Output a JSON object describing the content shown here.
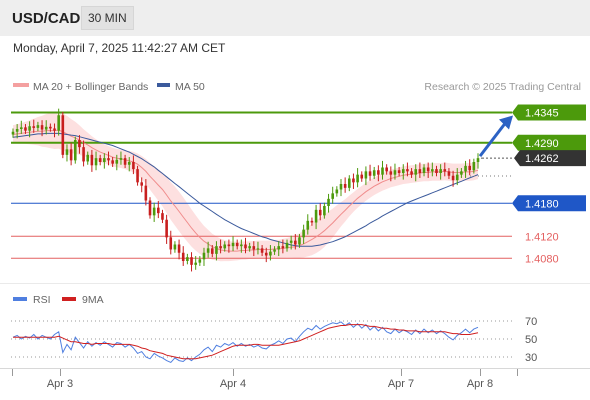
{
  "header": {
    "symbol": "USD/CAD",
    "interval": "30 MIN"
  },
  "datetime": "Monday, April 7, 2025 11:42:27 AM CET",
  "colors": {
    "resistance": "#4c9a0c",
    "current": "#333333",
    "pivot": "#1f57c7",
    "support": "#e46060",
    "bollinger_fill": "#fde0e0",
    "ma20": "#f08c8c",
    "ma50": "#3b5a9c",
    "rsi": "#4f7fe0",
    "rsi_ma": "#d02020",
    "bull_candle": "#4c9a0c",
    "bear_candle": "#c81e1e",
    "arrow": "#2c62c4"
  },
  "chart_data": [
    {
      "type": "candlestick",
      "legend": [
        {
          "label": "MA 20 + Bollinger Bands",
          "color": "#f4a0a0"
        },
        {
          "label": "MA 50",
          "color": "#3b5a9c"
        }
      ],
      "watermark": "Research © 2025 Trading Central",
      "x_ticks": [
        "Apr 3",
        "Apr 4",
        "Apr 7",
        "Apr 8"
      ],
      "ylim": [
        1.4035,
        1.4375
      ],
      "levels": [
        {
          "value": 1.4345,
          "label": "1.4345",
          "kind": "resistance"
        },
        {
          "value": 1.429,
          "label": "1.4290",
          "kind": "resistance"
        },
        {
          "value": 1.4262,
          "label": "1.4262",
          "kind": "current"
        },
        {
          "value": 1.418,
          "label": "1.4180",
          "kind": "pivot"
        },
        {
          "value": 1.412,
          "label": "1.4120",
          "kind": "support"
        },
        {
          "value": 1.408,
          "label": "1.4080",
          "kind": "support"
        }
      ],
      "close": [
        1.431,
        1.4315,
        1.4318,
        1.4312,
        1.432,
        1.4317,
        1.4322,
        1.4314,
        1.4319,
        1.4316,
        1.4312,
        1.434,
        1.4268,
        1.4278,
        1.4258,
        1.4295,
        1.4282,
        1.4256,
        1.4268,
        1.4249,
        1.4262,
        1.4255,
        1.4262,
        1.4258,
        1.4252,
        1.4259,
        1.4262,
        1.425,
        1.4255,
        1.4242,
        1.4218,
        1.4212,
        1.4185,
        1.4158,
        1.4172,
        1.4162,
        1.415,
        1.4118,
        1.4096,
        1.4105,
        1.409,
        1.4075,
        1.4082,
        1.4068,
        1.4072,
        1.4078,
        1.409,
        1.4098,
        1.4088,
        1.4102,
        1.4098,
        1.4105,
        1.4102,
        1.4108,
        1.4102,
        1.4105,
        1.4098,
        1.4102,
        1.4096,
        1.4098,
        1.409,
        1.4085,
        1.4092,
        1.4096,
        1.4102,
        1.4098,
        1.4108,
        1.4112,
        1.4105,
        1.4118,
        1.4132,
        1.4148,
        1.4145,
        1.4168,
        1.4158,
        1.4175,
        1.4188,
        1.4198,
        1.4205,
        1.4215,
        1.4208,
        1.4225,
        1.4218,
        1.4232,
        1.4225,
        1.4238,
        1.423,
        1.424,
        1.4232,
        1.4245,
        1.4238,
        1.4232,
        1.424,
        1.4235,
        1.4242,
        1.4238,
        1.4232,
        1.4242,
        1.4235,
        1.4245,
        1.4238,
        1.4242,
        1.4235,
        1.4242,
        1.4238,
        1.423,
        1.4222,
        1.4232,
        1.4238,
        1.4248,
        1.424,
        1.4255,
        1.4262
      ],
      "ma20": [
        1.4305,
        1.4306,
        1.4307,
        1.4308,
        1.4309,
        1.431,
        1.4311,
        1.4311,
        1.4312,
        1.4312,
        1.4312,
        1.4313,
        1.431,
        1.4306,
        1.4302,
        1.4299,
        1.4295,
        1.429,
        1.4286,
        1.4281,
        1.4277,
        1.4273,
        1.427,
        1.4267,
        1.4264,
        1.4262,
        1.4261,
        1.4259,
        1.4257,
        1.4255,
        1.4251,
        1.4245,
        1.4238,
        1.4229,
        1.4221,
        1.4213,
        1.4205,
        1.4195,
        1.4184,
        1.4175,
        1.4165,
        1.4155,
        1.4145,
        1.4135,
        1.4126,
        1.4118,
        1.4111,
        1.4106,
        1.4101,
        1.4098,
        1.4095,
        1.4094,
        1.4093,
        1.4093,
        1.4093,
        1.4094,
        1.4094,
        1.4095,
        1.4095,
        1.4096,
        1.4096,
        1.4096,
        1.4096,
        1.4097,
        1.4097,
        1.4098,
        1.4099,
        1.41,
        1.4101,
        1.4103,
        1.4106,
        1.411,
        1.4114,
        1.4119,
        1.4124,
        1.413,
        1.4137,
        1.4144,
        1.4152,
        1.416,
        1.4167,
        1.4175,
        1.4182,
        1.4189,
        1.4195,
        1.4201,
        1.4206,
        1.4211,
        1.4215,
        1.4219,
        1.4222,
        1.4225,
        1.4227,
        1.4229,
        1.4231,
        1.4232,
        1.4233,
        1.4234,
        1.4235,
        1.4236,
        1.4236,
        1.4237,
        1.4237,
        1.4237,
        1.4238,
        1.4237,
        1.4236,
        1.4236,
        1.4236,
        1.4237,
        1.4237,
        1.4238,
        1.424
      ],
      "ma50": [
        1.43,
        1.4301,
        1.4302,
        1.4303,
        1.4304,
        1.4305,
        1.4306,
        1.4306,
        1.4307,
        1.4307,
        1.4307,
        1.4307,
        1.4306,
        1.4305,
        1.4304,
        1.4303,
        1.4301,
        1.4299,
        1.4297,
        1.4295,
        1.4293,
        1.4291,
        1.4289,
        1.4287,
        1.4285,
        1.4282,
        1.4279,
        1.4276,
        1.4273,
        1.4269,
        1.4265,
        1.4261,
        1.4256,
        1.4251,
        1.4246,
        1.424,
        1.4234,
        1.4228,
        1.4222,
        1.4216,
        1.421,
        1.4204,
        1.4198,
        1.4192,
        1.4186,
        1.418,
        1.4175,
        1.417,
        1.4165,
        1.416,
        1.4155,
        1.415,
        1.4146,
        1.4142,
        1.4138,
        1.4134,
        1.4131,
        1.4128,
        1.4125,
        1.4122,
        1.4119,
        1.4117,
        1.4114,
        1.4112,
        1.411,
        1.4108,
        1.4106,
        1.4104,
        1.4103,
        1.4102,
        1.4102,
        1.4102,
        1.4102,
        1.4103,
        1.4104,
        1.4106,
        1.4108,
        1.411,
        1.4113,
        1.4116,
        1.4119,
        1.4123,
        1.4127,
        1.4131,
        1.4135,
        1.4139,
        1.4144,
        1.4148,
        1.4152,
        1.4157,
        1.4161,
        1.4165,
        1.4169,
        1.4173,
        1.4177,
        1.4181,
        1.4184,
        1.4187,
        1.419,
        1.4193,
        1.4196,
        1.4199,
        1.4202,
        1.4205,
        1.4208,
        1.4211,
        1.4214,
        1.4217,
        1.422,
        1.4223,
        1.4226,
        1.4229,
        1.4232
      ]
    },
    {
      "type": "line",
      "legend": [
        {
          "label": "RSI",
          "color": "#4f7fe0"
        },
        {
          "label": "9MA",
          "color": "#d02020"
        }
      ],
      "ylim": [
        20,
        80
      ],
      "y_ticks": [
        70,
        50,
        30
      ],
      "y_tick_labels": [
        "70",
        "50",
        "30"
      ],
      "rsi": [
        52,
        54,
        50,
        53,
        51,
        55,
        50,
        54,
        52,
        50,
        55,
        58,
        35,
        44,
        38,
        52,
        46,
        40,
        47,
        42,
        46,
        43,
        47,
        44,
        41,
        46,
        45,
        41,
        44,
        40,
        34,
        36,
        30,
        28,
        34,
        31,
        29,
        26,
        24,
        29,
        26,
        25,
        29,
        26,
        30,
        33,
        38,
        41,
        36,
        43,
        41,
        45,
        43,
        46,
        42,
        45,
        42,
        44,
        41,
        43,
        40,
        39,
        43,
        45,
        48,
        45,
        50,
        51,
        47,
        53,
        58,
        62,
        60,
        65,
        61,
        64,
        66,
        68,
        67,
        69,
        65,
        68,
        63,
        67,
        62,
        66,
        60,
        64,
        59,
        63,
        58,
        56,
        61,
        57,
        60,
        58,
        55,
        60,
        56,
        61,
        57,
        60,
        56,
        59,
        56,
        52,
        49,
        54,
        57,
        61,
        57,
        61,
        63
      ],
      "rsi_ma": [
        52,
        52,
        52,
        52,
        52,
        52,
        52,
        52,
        52,
        52,
        52,
        53,
        51,
        49,
        47,
        47,
        46,
        45,
        45,
        44,
        45,
        45,
        45,
        45,
        44,
        44,
        44,
        44,
        44,
        43,
        42,
        40,
        39,
        37,
        36,
        35,
        34,
        32,
        31,
        30,
        29,
        28,
        28,
        28,
        28,
        29,
        30,
        31,
        32,
        34,
        36,
        38,
        40,
        42,
        43,
        43,
        43,
        43,
        44,
        44,
        43,
        43,
        43,
        43,
        43,
        44,
        45,
        46,
        47,
        48,
        50,
        52,
        54,
        56,
        58,
        60,
        62,
        63,
        64,
        65,
        65,
        66,
        66,
        66,
        66,
        65,
        64,
        64,
        63,
        62,
        62,
        61,
        61,
        60,
        60,
        59,
        59,
        59,
        58,
        58,
        58,
        58,
        58,
        58,
        58,
        57,
        56,
        56,
        55,
        55,
        55,
        56,
        57
      ]
    }
  ]
}
